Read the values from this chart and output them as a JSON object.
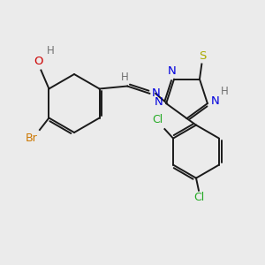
{
  "bg_color": "#ebebeb",
  "bond_color": "#1a1a1a",
  "atom_colors": {
    "O": "#cc0000",
    "H_gray": "#707070",
    "N": "#0000dd",
    "S": "#aaaa00",
    "Br": "#cc7700",
    "Cl": "#22aa22",
    "C": "#1a1a1a"
  },
  "figsize": [
    3.0,
    3.0
  ],
  "dpi": 100,
  "xlim": [
    0,
    10
  ],
  "ylim": [
    0,
    10
  ]
}
